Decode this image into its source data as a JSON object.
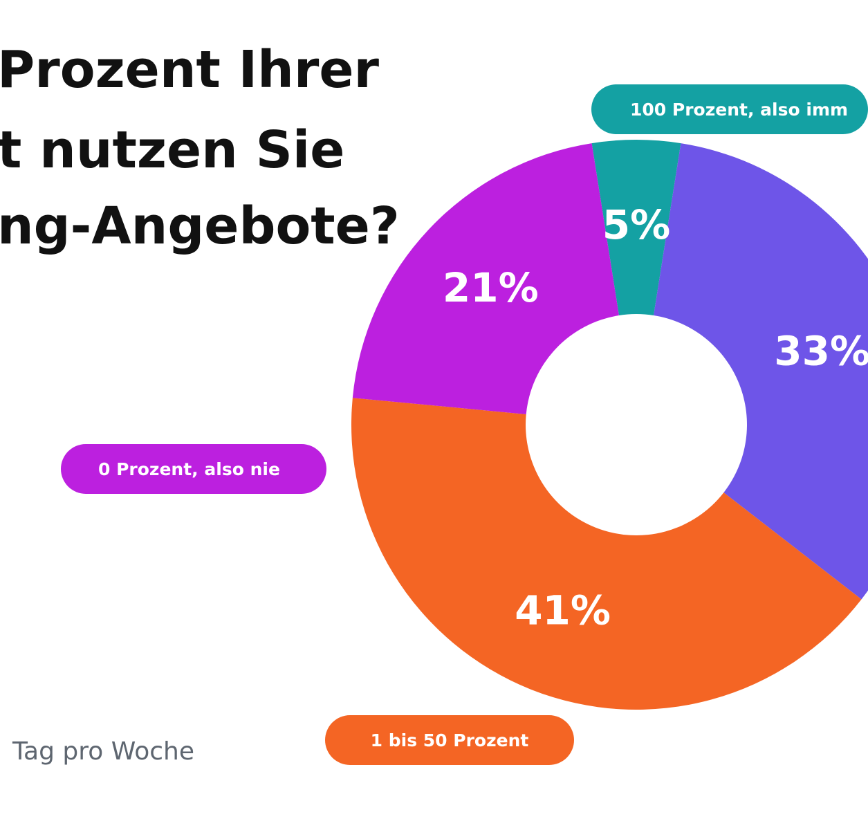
{
  "title_lines": [
    "Prozent Ihrer",
    "t nutzen Sie",
    "ng-Angebote?"
  ],
  "subtitle": "Tag pro Woche",
  "colors": {
    "nie": "#bc20df",
    "bis50": "#f46524",
    "immer": "#14a1a3",
    "other": "#6e55e8",
    "background": "#ffffff"
  },
  "legend_pills": [
    {
      "label": "0 Prozent, also nie",
      "color": "#bc20df"
    },
    {
      "label": "1 bis 50 Prozent",
      "color": "#f46524"
    },
    {
      "label": "100 Prozent, also imm",
      "color": "#14a1a3"
    }
  ],
  "chart_data": {
    "type": "pie",
    "donut": true,
    "slices": [
      {
        "label": "5%",
        "value": 5,
        "color": "#14a1a3"
      },
      {
        "label": "33%",
        "value": 33,
        "color": "#6e55e8"
      },
      {
        "label": "41%",
        "value": 41,
        "color": "#f46524"
      },
      {
        "label": "21%",
        "value": 21,
        "color": "#bc20df"
      }
    ]
  }
}
